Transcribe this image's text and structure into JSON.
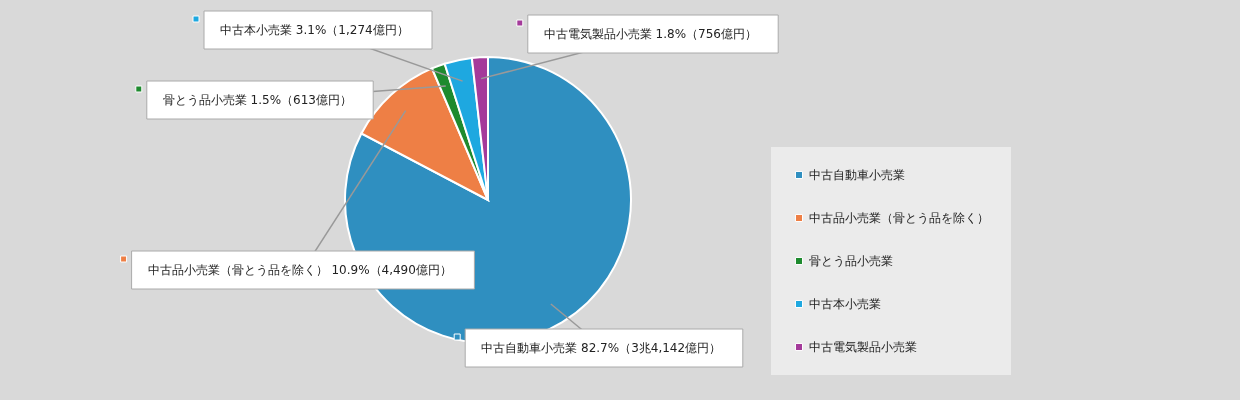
{
  "chart_data": {
    "type": "pie",
    "categories": [
      "中古自動車小売業",
      "中古品小売業（骨とう品を除く）",
      "骨とう品小売業",
      "中古本小売業",
      "中古電気製品小売業"
    ],
    "values": [
      82.7,
      10.9,
      1.5,
      3.1,
      1.8
    ],
    "colors": [
      "#2f8fc0",
      "#ee7f45",
      "#1e8a2e",
      "#1ea8e0",
      "#a43a9a"
    ],
    "value_labels": [
      "82.7%（3兆4,142億円）",
      "10.9%（4,490億円）",
      "1.5%（613億円）",
      "3.1%（1,274億円）",
      "1.8%（756億円）"
    ],
    "legend": "right"
  }
}
